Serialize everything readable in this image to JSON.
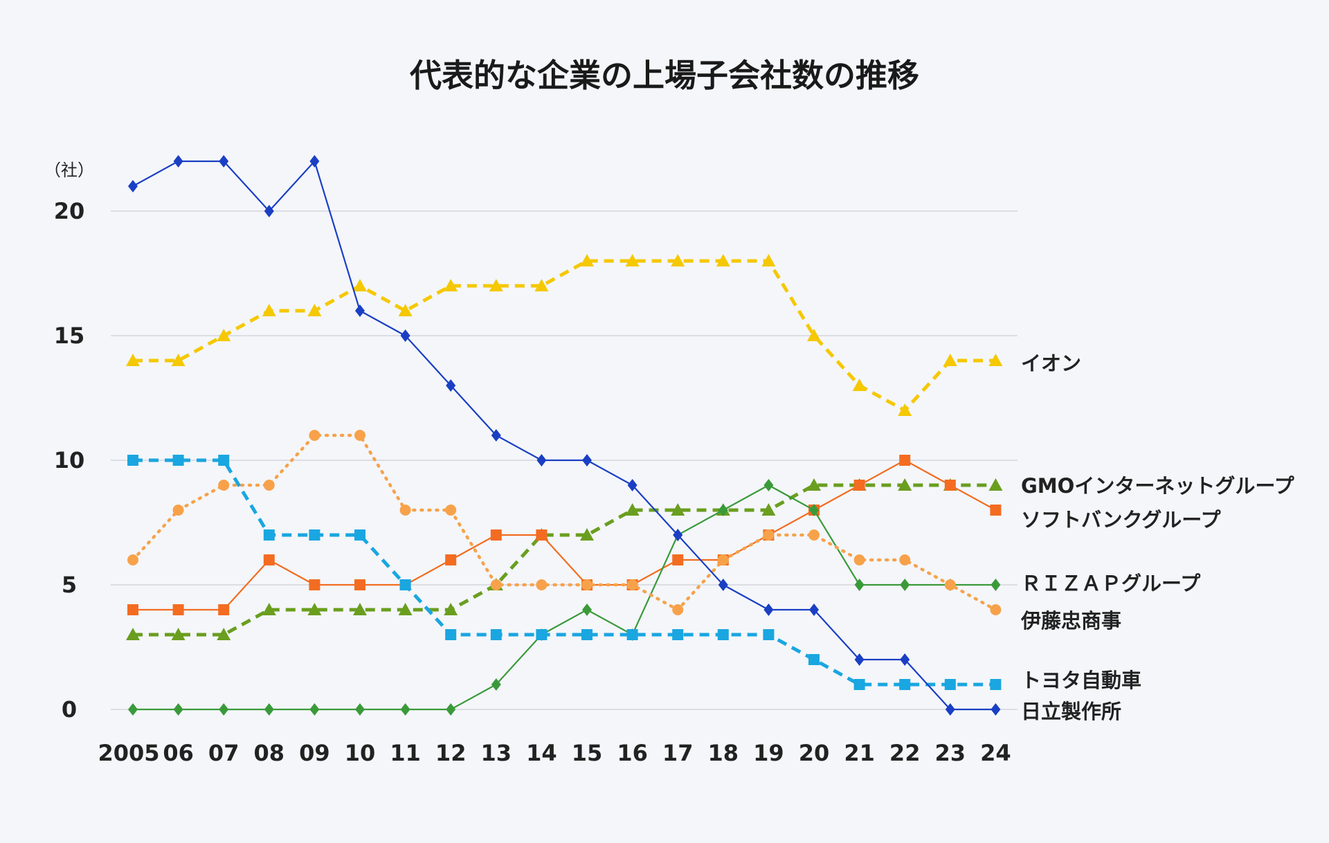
{
  "chart_data": {
    "type": "line",
    "title": "代表的な企業の上場子会社数の推移",
    "unit_label": "（社）",
    "xlabel": "",
    "ylabel": "",
    "ylim": [
      0,
      22
    ],
    "yticks": [
      "0",
      "5",
      "10",
      "15",
      "20"
    ],
    "grid": true,
    "categories": [
      "2005",
      "06",
      "07",
      "08",
      "09",
      "10",
      "11",
      "12",
      "13",
      "14",
      "15",
      "16",
      "17",
      "18",
      "19",
      "20",
      "21",
      "22",
      "23",
      "24"
    ],
    "series": [
      {
        "name": "イオン",
        "color": "#f5c800",
        "style": "dashed",
        "marker": "triangle",
        "values": [
          14,
          14,
          15,
          16,
          16,
          17,
          16,
          17,
          17,
          17,
          18,
          18,
          18,
          18,
          18,
          15,
          13,
          12,
          14,
          14
        ]
      },
      {
        "name": "GMOインターネットグループ",
        "color": "#6a9e1f",
        "style": "dashed",
        "marker": "triangle",
        "values": [
          3,
          3,
          3,
          4,
          4,
          4,
          4,
          4,
          5,
          7,
          7,
          8,
          8,
          8,
          8,
          9,
          9,
          9,
          9,
          9
        ]
      },
      {
        "name": "ソフトバンクグループ",
        "color": "#f36c21",
        "style": "solid",
        "marker": "square",
        "values": [
          4,
          4,
          4,
          6,
          5,
          5,
          5,
          6,
          7,
          7,
          5,
          5,
          6,
          6,
          7,
          8,
          9,
          10,
          9,
          8
        ]
      },
      {
        "name": "ＲＩＺＡＰグループ",
        "color": "#3a9a3a",
        "style": "solid",
        "marker": "diamond",
        "values": [
          0,
          0,
          0,
          0,
          0,
          0,
          0,
          0,
          1,
          3,
          4,
          3,
          7,
          8,
          9,
          8,
          5,
          5,
          5,
          5
        ]
      },
      {
        "name": "伊藤忠商事",
        "color": "#f7a24a",
        "style": "dotted",
        "marker": "circle",
        "values": [
          6,
          8,
          9,
          9,
          11,
          11,
          8,
          8,
          5,
          5,
          5,
          5,
          4,
          6,
          7,
          7,
          6,
          6,
          5,
          4
        ]
      },
      {
        "name": "トヨタ自動車",
        "color": "#1aa6e0",
        "style": "dashed",
        "marker": "square",
        "values": [
          10,
          10,
          10,
          7,
          7,
          7,
          5,
          3,
          3,
          3,
          3,
          3,
          3,
          3,
          3,
          2,
          1,
          1,
          1,
          1
        ]
      },
      {
        "name": "日立製作所",
        "color": "#1a3fc4",
        "style": "solid",
        "marker": "diamond",
        "values": [
          21,
          22,
          22,
          20,
          22,
          16,
          15,
          13,
          11,
          10,
          10,
          9,
          7,
          5,
          4,
          4,
          2,
          2,
          0,
          0
        ]
      }
    ]
  }
}
